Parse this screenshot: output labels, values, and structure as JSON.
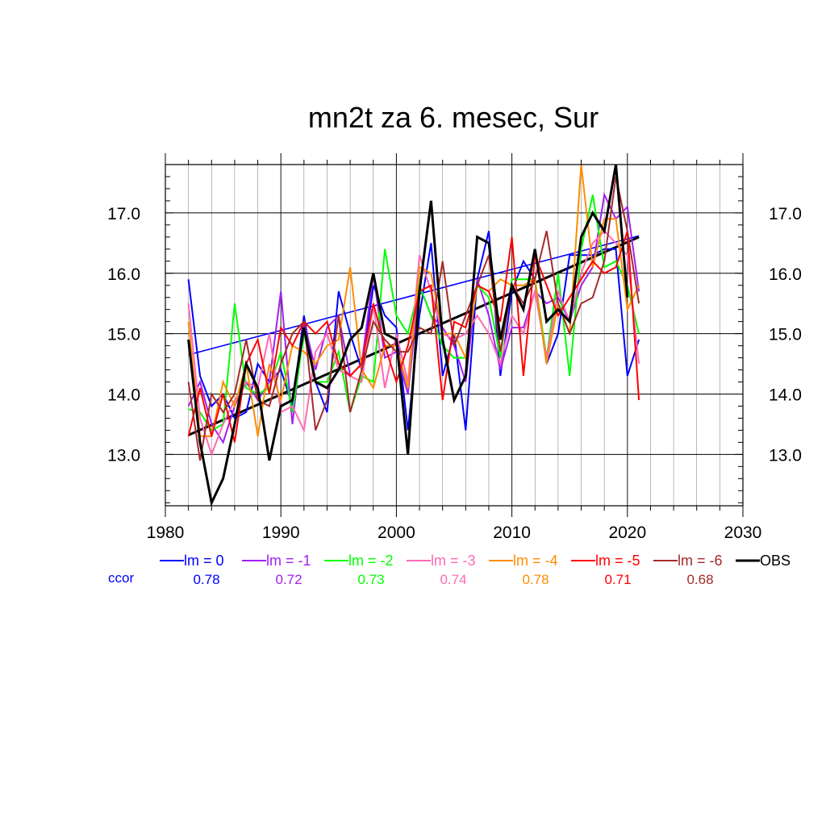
{
  "chart_data": {
    "type": "line",
    "title": "mn2t za 6. mesec, Sur",
    "xlabel": "",
    "ylabel": "",
    "xlim": [
      1980,
      2030
    ],
    "ylim": [
      12.15,
      17.8
    ],
    "x_ticks": [
      1980,
      1990,
      2000,
      2010,
      2020,
      2030
    ],
    "x_tick_labels": [
      "1980",
      "1990",
      "2000",
      "2010",
      "2020",
      "2030"
    ],
    "y_ticks": [
      13.0,
      14.0,
      15.0,
      16.0,
      17.0
    ],
    "y_tick_labels": [
      "13.0",
      "14.0",
      "15.0",
      "16.0",
      "17.0"
    ],
    "grid": true,
    "legend_position": "bottom",
    "x": [
      1982,
      1983,
      1984,
      1985,
      1986,
      1987,
      1988,
      1989,
      1990,
      1991,
      1992,
      1993,
      1994,
      1995,
      1996,
      1997,
      1998,
      1999,
      2000,
      2001,
      2002,
      2003,
      2004,
      2005,
      2006,
      2007,
      2008,
      2009,
      2010,
      2011,
      2012,
      2013,
      2014,
      2015,
      2016,
      2017,
      2018,
      2019,
      2020,
      2021
    ],
    "series": [
      {
        "name": "lm = 0",
        "color": "#0000ff",
        "ccor": "0.78",
        "values": [
          15.9,
          14.3,
          13.8,
          14.0,
          13.6,
          13.7,
          14.5,
          14.2,
          14.4,
          13.8,
          15.3,
          14.2,
          13.7,
          15.7,
          15.0,
          14.4,
          15.8,
          15.3,
          15.1,
          13.4,
          15.3,
          16.5,
          14.3,
          15.0,
          13.4,
          15.9,
          16.7,
          14.3,
          15.7,
          16.2,
          15.9,
          14.5,
          15.0,
          16.3,
          16.3,
          16.3,
          16.4,
          16.4,
          14.3,
          14.9
        ]
      },
      {
        "name": "lm = -1",
        "color": "#a020f0",
        "ccor": "0.72",
        "values": [
          13.8,
          14.2,
          13.5,
          13.2,
          13.8,
          14.2,
          13.9,
          14.2,
          15.7,
          13.5,
          15.2,
          14.4,
          15.1,
          15.3,
          14.3,
          14.5,
          16.0,
          14.6,
          14.7,
          14.0,
          15.8,
          15.3,
          15.1,
          14.8,
          14.2,
          15.9,
          15.3,
          14.4,
          15.1,
          15.1,
          15.7,
          15.5,
          15.6,
          15.2,
          15.8,
          16.1,
          17.3,
          16.9,
          17.1,
          15.7
        ]
      },
      {
        "name": "lm = -2",
        "color": "#00ff00",
        "ccor": "0.73",
        "values": [
          13.75,
          13.7,
          13.4,
          13.5,
          15.5,
          14.1,
          14.0,
          14.1,
          14.7,
          13.7,
          15.0,
          14.2,
          14.2,
          14.7,
          13.7,
          14.3,
          14.2,
          16.4,
          15.3,
          15.0,
          15.8,
          15.3,
          14.8,
          14.6,
          14.6,
          15.8,
          15.6,
          14.6,
          15.9,
          15.9,
          15.9,
          14.6,
          16.0,
          14.3,
          16.4,
          17.3,
          16.1,
          16.2,
          15.8,
          15.0
        ]
      },
      {
        "name": "lm = -3",
        "color": "#ff69b4",
        "ccor": "0.74",
        "values": [
          15.5,
          13.6,
          13.0,
          13.5,
          13.9,
          14.2,
          14.1,
          15.0,
          13.7,
          13.8,
          13.4,
          14.7,
          15.0,
          14.4,
          14.3,
          14.2,
          15.5,
          14.1,
          15.0,
          14.2,
          16.3,
          15.7,
          15.0,
          14.9,
          15.0,
          15.3,
          15.0,
          14.5,
          15.3,
          15.0,
          15.7,
          14.6,
          15.7,
          15.2,
          16.0,
          16.5,
          16.7,
          16.5,
          16.3,
          14.5
        ]
      },
      {
        "name": "lm = -4",
        "color": "#ff8c00",
        "ccor": "0.78",
        "values": [
          15.2,
          13.3,
          13.3,
          14.2,
          13.8,
          14.5,
          13.3,
          14.5,
          13.9,
          14.8,
          14.7,
          14.5,
          14.8,
          14.9,
          16.1,
          14.4,
          14.1,
          14.8,
          14.8,
          14.1,
          16.1,
          16.0,
          15.0,
          15.0,
          14.6,
          15.8,
          15.7,
          15.9,
          15.8,
          15.8,
          15.9,
          14.5,
          15.5,
          15.0,
          17.8,
          16.1,
          16.9,
          16.9,
          15.4,
          15.8
        ]
      },
      {
        "name": "lm = -5",
        "color": "#ff0000",
        "ccor": "0.71",
        "values": [
          13.3,
          14.1,
          13.3,
          14.0,
          13.2,
          14.5,
          14.9,
          14.0,
          15.1,
          14.8,
          15.2,
          15.0,
          15.2,
          14.5,
          14.3,
          14.5,
          15.5,
          14.8,
          14.2,
          14.8,
          15.7,
          15.8,
          13.9,
          15.2,
          15.1,
          15.8,
          15.7,
          15.2,
          16.6,
          14.3,
          16.3,
          15.8,
          15.3,
          15.6,
          15.9,
          16.2,
          16.0,
          16.1,
          16.7,
          13.9
        ]
      },
      {
        "name": "lm = -6",
        "color": "#a52a2a",
        "ccor": "0.68",
        "values": [
          14.2,
          12.9,
          14.0,
          13.7,
          14.0,
          14.9,
          13.9,
          13.8,
          14.5,
          15.0,
          15.2,
          13.4,
          13.9,
          15.3,
          13.7,
          14.4,
          15.2,
          14.9,
          14.7,
          14.7,
          15.1,
          15.0,
          16.2,
          14.8,
          15.3,
          15.8,
          16.3,
          14.7,
          15.8,
          15.5,
          15.9,
          16.7,
          15.5,
          15.0,
          15.5,
          15.6,
          16.2,
          17.6,
          16.7,
          15.5
        ]
      },
      {
        "name": "OBS",
        "color": "#000000",
        "ccor": "",
        "values": [
          14.9,
          13.2,
          12.2,
          12.6,
          13.5,
          14.5,
          14.1,
          12.9,
          13.8,
          13.9,
          15.1,
          14.2,
          14.1,
          14.4,
          14.9,
          15.1,
          16.0,
          15.0,
          14.9,
          13.0,
          15.7,
          17.2,
          14.9,
          13.9,
          14.3,
          16.6,
          16.5,
          14.9,
          15.8,
          15.4,
          16.4,
          15.2,
          15.4,
          15.2,
          16.6,
          17.0,
          16.7,
          17.8,
          15.6,
          null
        ]
      }
    ],
    "trend_lines": [
      {
        "series": "lm = 0",
        "color": "#0000ff",
        "x": [
          1982,
          2021
        ],
        "y": [
          14.65,
          16.62
        ]
      },
      {
        "series": "OBS",
        "color": "#000000",
        "x": [
          1982,
          2021
        ],
        "y": [
          13.32,
          16.6
        ]
      }
    ],
    "ccor_label": "ccor",
    "ccor_label_color": "#0000ff"
  }
}
